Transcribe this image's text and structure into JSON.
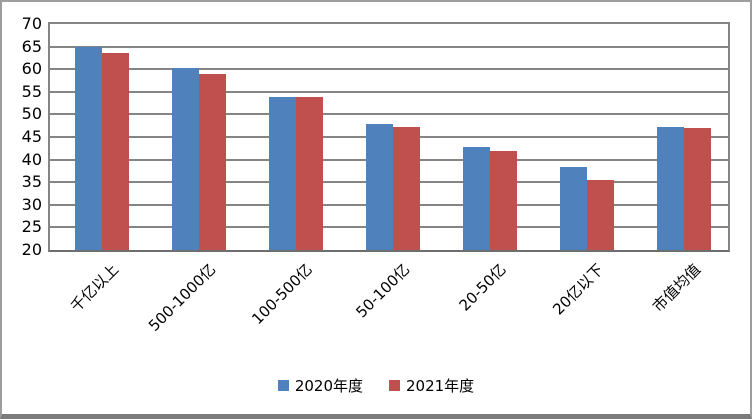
{
  "chart_data": {
    "type": "bar",
    "title": "",
    "xlabel": "",
    "ylabel": "",
    "categories": [
      "千亿以上",
      "500-1000亿",
      "100-500亿",
      "50-100亿",
      "20-50亿",
      "20亿以下",
      "市值均值"
    ],
    "series": [
      {
        "name": "2020年度",
        "color": "#4F81BD",
        "values": [
          65.0,
          60.2,
          53.8,
          47.9,
          42.7,
          38.3,
          47.3
        ]
      },
      {
        "name": "2021年度",
        "color": "#C0504D",
        "values": [
          63.6,
          58.9,
          53.8,
          47.3,
          42.0,
          35.6,
          47.0
        ]
      }
    ],
    "ylim": [
      20,
      70
    ],
    "ytick_step": 5,
    "grid": true,
    "legend_position": "bottom",
    "gridline_color": "#858585",
    "axis_text_color": "#000000"
  }
}
